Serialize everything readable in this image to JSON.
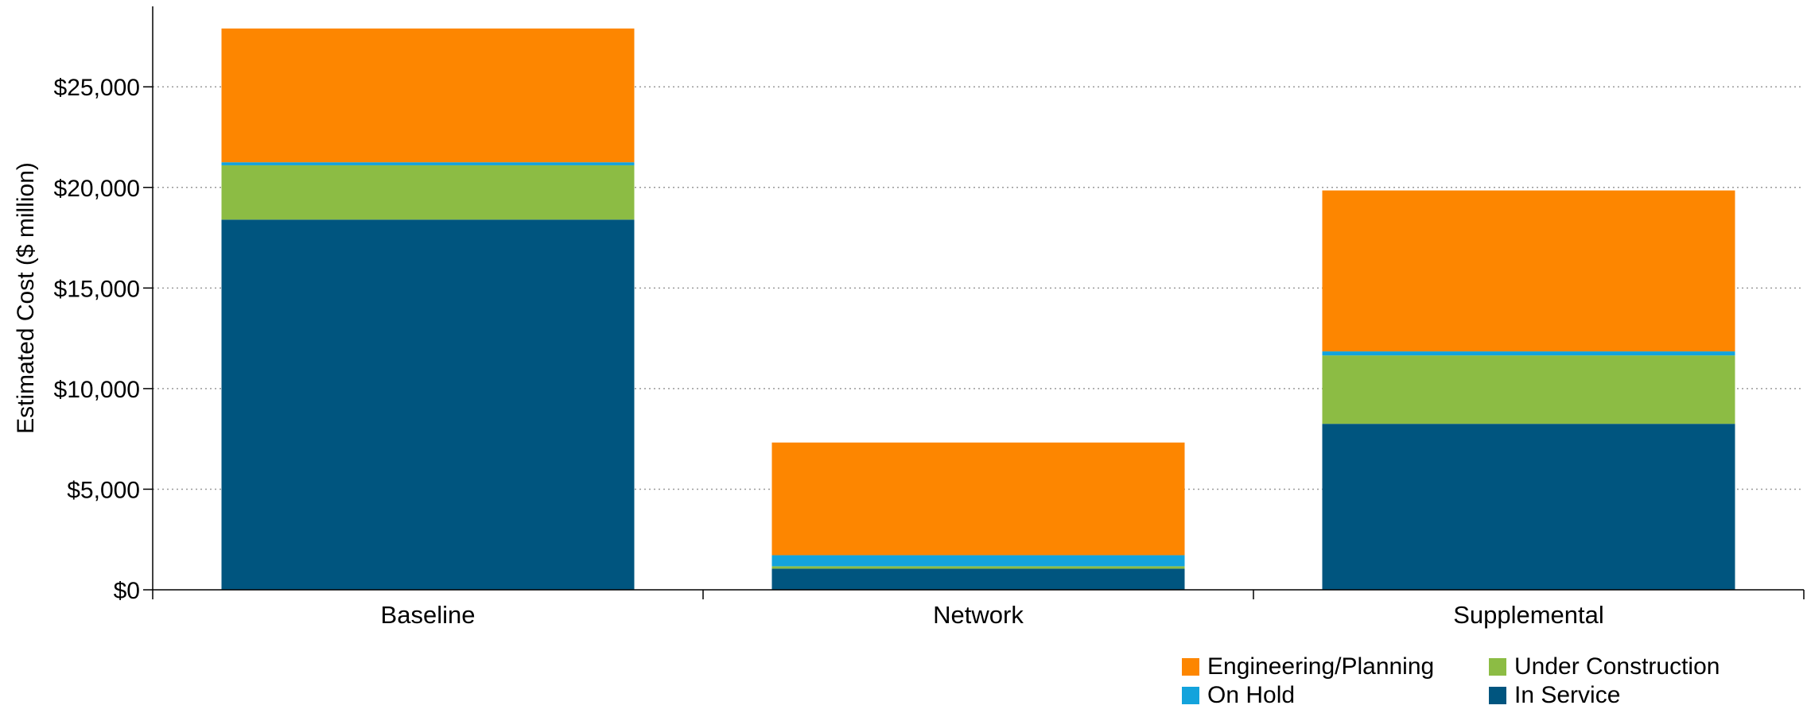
{
  "chart_data": {
    "type": "bar",
    "stacked": true,
    "title": "",
    "xlabel": "",
    "ylabel": "Estimated Cost ($ million)",
    "ylim": [
      0,
      29000
    ],
    "yticks": [
      0,
      5000,
      10000,
      15000,
      20000,
      25000
    ],
    "ytick_labels": [
      "$0",
      "$5,000",
      "$10,000",
      "$15,000",
      "$20,000",
      "$25,000"
    ],
    "grid": "horizontal dotted",
    "legend_position": "bottom-right",
    "categories": [
      "Baseline",
      "Network",
      "Supplemental"
    ],
    "series": [
      {
        "name": "In Service",
        "color": "#00557f",
        "values": [
          18400,
          1050,
          8250
        ]
      },
      {
        "name": "Under Construction",
        "color": "#8cbc44",
        "values": [
          2700,
          120,
          3400
        ]
      },
      {
        "name": "On Hold",
        "color": "#13a3dc",
        "values": [
          150,
          550,
          200
        ]
      },
      {
        "name": "Engineering/Planning",
        "color": "#fd8600",
        "values": [
          6650,
          5600,
          8000
        ]
      }
    ],
    "legend_order": [
      "Engineering/Planning",
      "Under Construction",
      "On Hold",
      "In Service"
    ]
  }
}
